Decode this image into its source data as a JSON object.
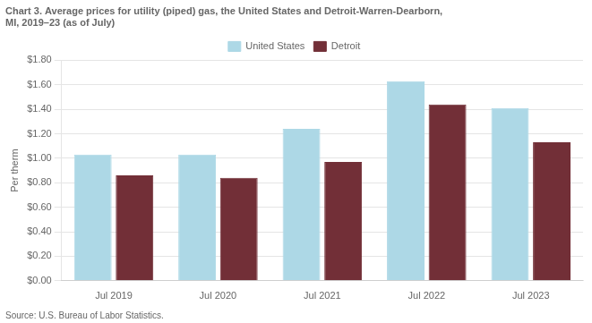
{
  "chart_data": {
    "type": "bar",
    "title": [
      "Chart 3. Average prices for utility (piped) gas, the United States and Detroit-Warren-Dearborn,",
      "MI, 2019–23 (as of July)"
    ],
    "ylabel": "Per therm",
    "source": "Source: U.S. Bureau of Labor Statistics.",
    "categories": [
      "Jul 2019",
      "Jul 2020",
      "Jul 2021",
      "Jul 2022",
      "Jul 2023"
    ],
    "series": [
      {
        "name": "United States",
        "color": "#ADD8E6",
        "values": [
          1.03,
          1.03,
          1.24,
          1.63,
          1.41
        ]
      },
      {
        "name": "Detroit",
        "color": "#722F37",
        "values": [
          0.86,
          0.84,
          0.97,
          1.44,
          1.13
        ]
      }
    ],
    "ylim": [
      0,
      1.8
    ],
    "yticks": [
      {
        "value": 0.0,
        "label": "$0.00"
      },
      {
        "value": 0.2,
        "label": "$0.20"
      },
      {
        "value": 0.4,
        "label": "$0.40"
      },
      {
        "value": 0.6,
        "label": "$0.60"
      },
      {
        "value": 0.8,
        "label": "$0.80"
      },
      {
        "value": 1.0,
        "label": "$1.00"
      },
      {
        "value": 1.2,
        "label": "$1.20"
      },
      {
        "value": 1.4,
        "label": "$1.40"
      },
      {
        "value": 1.6,
        "label": "$1.60"
      },
      {
        "value": 1.8,
        "label": "$1.80"
      }
    ],
    "grid": true,
    "legend": "top"
  }
}
